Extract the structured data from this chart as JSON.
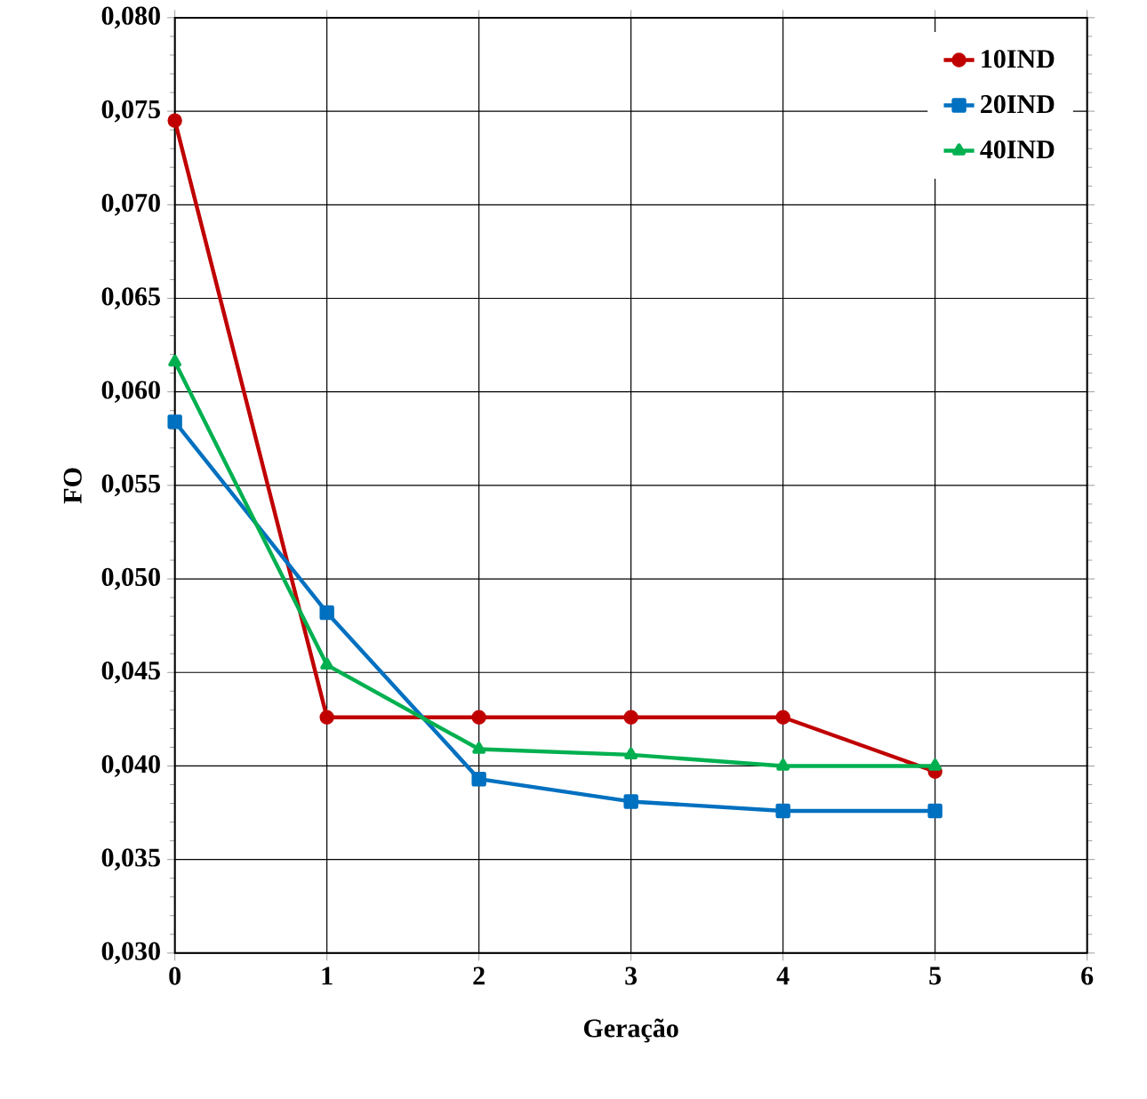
{
  "chart_data": {
    "type": "line",
    "xlabel": "Geração",
    "ylabel": "FO",
    "x": [
      0,
      1,
      2,
      3,
      4,
      5
    ],
    "series": [
      {
        "name": "10IND",
        "color": "#c00000",
        "marker": "circle",
        "values": [
          0.0745,
          0.0426,
          0.0426,
          0.0426,
          0.0426,
          0.0397
        ]
      },
      {
        "name": "20IND",
        "color": "#0070c0",
        "marker": "square",
        "values": [
          0.0584,
          0.0482,
          0.0393,
          0.0381,
          0.0376,
          0.0376
        ]
      },
      {
        "name": "40IND",
        "color": "#00b050",
        "marker": "triangle",
        "values": [
          0.0616,
          0.0454,
          0.0409,
          0.0406,
          0.04,
          0.04
        ]
      }
    ],
    "xlim": [
      0,
      6
    ],
    "xticks": [
      0,
      1,
      2,
      3,
      4,
      5,
      6
    ],
    "ylim": [
      0.03,
      0.08
    ],
    "yticks": [
      {
        "value": 0.03,
        "label": "0,030"
      },
      {
        "value": 0.035,
        "label": "0,035"
      },
      {
        "value": 0.04,
        "label": "0,040"
      },
      {
        "value": 0.045,
        "label": "0,045"
      },
      {
        "value": 0.05,
        "label": "0,050"
      },
      {
        "value": 0.055,
        "label": "0,055"
      },
      {
        "value": 0.06,
        "label": "0,060"
      },
      {
        "value": 0.065,
        "label": "0,065"
      },
      {
        "value": 0.07,
        "label": "0,070"
      },
      {
        "value": 0.075,
        "label": "0,075"
      },
      {
        "value": 0.08,
        "label": "0,080"
      }
    ],
    "grid": true,
    "legend": "top right",
    "line_style": "solid"
  }
}
